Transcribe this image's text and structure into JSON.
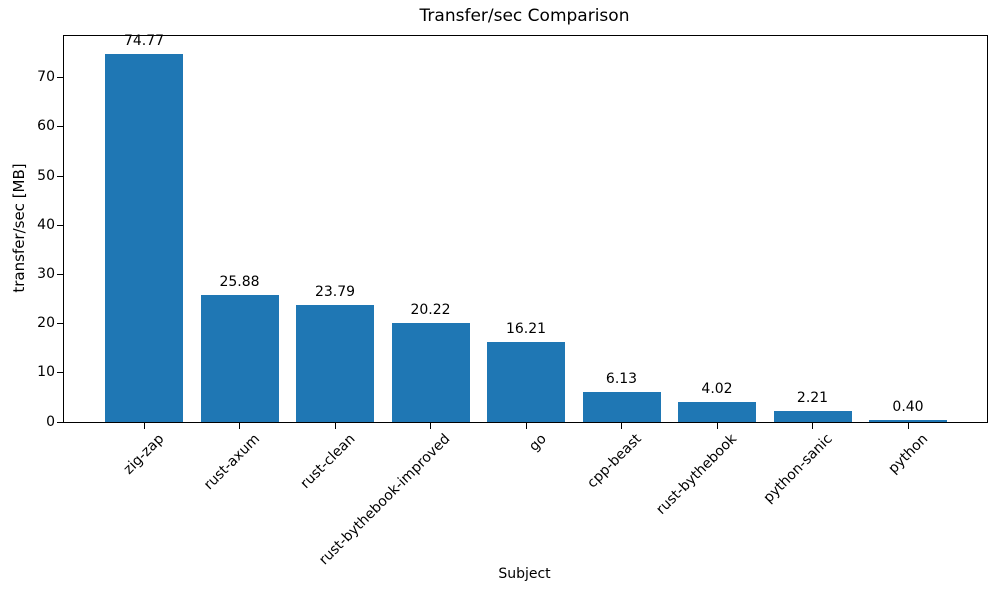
{
  "chart_data": {
    "type": "bar",
    "title": "Transfer/sec Comparison",
    "xlabel": "Subject",
    "ylabel": "transfer/sec [MB]",
    "categories": [
      "zig-zap",
      "rust-axum",
      "rust-clean",
      "rust-bythebook-improved",
      "go",
      "cpp-beast",
      "rust-bythebook",
      "python-sanic",
      "python"
    ],
    "values": [
      74.77,
      25.88,
      23.79,
      20.22,
      16.21,
      6.13,
      4.02,
      2.21,
      0.4
    ],
    "value_labels": [
      "74.77",
      "25.88",
      "23.79",
      "20.22",
      "16.21",
      "6.13",
      "4.02",
      "2.21",
      "0.40"
    ],
    "y_ticks": [
      0,
      10,
      20,
      30,
      40,
      50,
      60,
      70
    ],
    "ylim": [
      0,
      78.5
    ],
    "bar_color": "#1f77b4",
    "grid": false,
    "legend": "none",
    "x_tick_rotation_deg": 45
  }
}
